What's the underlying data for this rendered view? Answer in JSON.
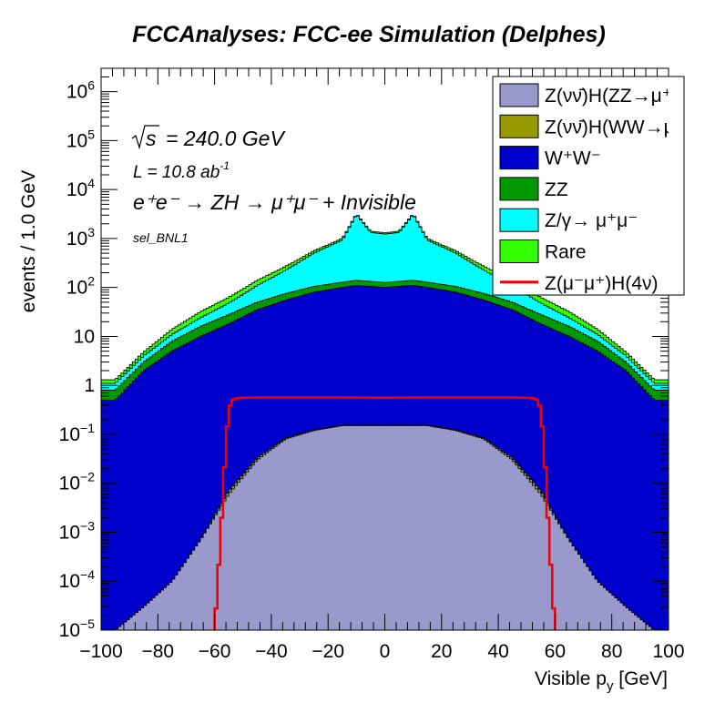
{
  "chart_data": {
    "type": "area",
    "title": "FCCAnalyses: FCC-ee Simulation (Delphes)",
    "xlabel": "Visible p",
    "xlabel_sub": "y",
    "xlabel_unit": "[GeV]",
    "ylabel": "events / 1.0 GeV",
    "xlim": [
      -100,
      100
    ],
    "ylim": [
      1e-05,
      3000000.0
    ],
    "yscale": "log",
    "x_ticks": [
      -100,
      -80,
      -60,
      -40,
      -20,
      0,
      20,
      40,
      60,
      80,
      100
    ],
    "y_ticks": [
      {
        "v": 1e-05,
        "base": "10",
        "exp": "−5"
      },
      {
        "v": 0.0001,
        "base": "10",
        "exp": "−4"
      },
      {
        "v": 0.001,
        "base": "10",
        "exp": "−3"
      },
      {
        "v": 0.01,
        "base": "10",
        "exp": "−2"
      },
      {
        "v": 0.1,
        "base": "10",
        "exp": "−1"
      },
      {
        "v": 1,
        "base": "1",
        "exp": ""
      },
      {
        "v": 10,
        "base": "10",
        "exp": ""
      },
      {
        "v": 100,
        "base": "10",
        "exp": "2"
      },
      {
        "v": 1000,
        "base": "10",
        "exp": "3"
      },
      {
        "v": 10000,
        "base": "10",
        "exp": "4"
      },
      {
        "v": 100000,
        "base": "10",
        "exp": "5"
      },
      {
        "v": 1000000,
        "base": "10",
        "exp": "6"
      }
    ],
    "annotations": {
      "sqrt_s": "= 240.0 GeV",
      "lumi": "L = 10.8 ab",
      "lumi_exp": "-1",
      "process": "e⁺e⁻ → ZH → μ⁺μ⁻ + Invisible",
      "selection": "sel_BNL1"
    },
    "x": [
      -95,
      -85,
      -75,
      -65,
      -55,
      -45,
      -35,
      -25,
      -15,
      -10,
      -5,
      0,
      5,
      10,
      15,
      25,
      35,
      45,
      55,
      65,
      75,
      85,
      95
    ],
    "stack": [
      {
        "name": "Z(νν̄)H(ZZ→μ⁺μ⁻νν̄)",
        "color": "#9999cc",
        "values": [
          1e-05,
          3e-05,
          0.0001,
          0.0007,
          0.006,
          0.03,
          0.08,
          0.12,
          0.15,
          0.15,
          0.15,
          0.15,
          0.15,
          0.15,
          0.15,
          0.12,
          0.08,
          0.03,
          0.006,
          0.0007,
          0.0001,
          3e-05,
          1e-05
        ]
      },
      {
        "name": "Z(νν̄)H(WW→μ⁺νμ⁻ν̄)",
        "color": "#999900",
        "values": [
          0,
          0,
          0,
          2e-05,
          0.001,
          0.003,
          0.004,
          0.004,
          0.005,
          0.004,
          0.005,
          0.004,
          0.005,
          0.004,
          0.005,
          0.004,
          0.004,
          0.003,
          0.001,
          2e-05,
          0,
          0,
          0
        ]
      },
      {
        "name": "W⁺W⁻",
        "color": "#0000cc",
        "values": [
          0.5,
          2,
          5,
          10,
          18,
          35,
          55,
          80,
          100,
          110,
          105,
          100,
          105,
          110,
          100,
          80,
          55,
          35,
          18,
          10,
          5,
          2,
          0.5
        ]
      },
      {
        "name": "ZZ",
        "color": "#009900",
        "values": [
          0.3,
          1,
          3,
          6,
          10,
          15,
          20,
          25,
          28,
          30,
          28,
          27,
          28,
          30,
          28,
          25,
          20,
          15,
          10,
          6,
          3,
          1,
          0.3
        ]
      },
      {
        "name": "Z/γ→ μ⁺μ⁻",
        "color": "#00ffff",
        "values": [
          0.3,
          1,
          3,
          8,
          20,
          60,
          150,
          400,
          800,
          3000,
          1200,
          1100,
          1200,
          3000,
          800,
          400,
          150,
          60,
          20,
          8,
          3,
          1,
          0.3
        ]
      },
      {
        "name": "Rare",
        "color": "#33ff00",
        "values": [
          0.2,
          0.8,
          3,
          8,
          15,
          30,
          45,
          60,
          75,
          80,
          80,
          80,
          80,
          80,
          75,
          60,
          45,
          30,
          15,
          8,
          3,
          0.8,
          0.2
        ]
      }
    ],
    "signal": {
      "name": "Z(μ⁻μ⁺)H(4ν)",
      "color": "#ee0000",
      "x": [
        -60,
        -58,
        -56,
        -55,
        -54,
        -52,
        -50,
        -40,
        -20,
        0,
        20,
        40,
        50,
        52,
        54,
        55,
        56,
        58,
        60
      ],
      "values": [
        1e-05,
        0.0006,
        0.07,
        0.3,
        0.5,
        0.55,
        0.56,
        0.57,
        0.57,
        0.56,
        0.57,
        0.57,
        0.56,
        0.55,
        0.5,
        0.3,
        0.07,
        0.0006,
        1e-05
      ]
    },
    "legend": {
      "position": "top-right",
      "entries": [
        {
          "label": "Z(νν̄)H(ZZ→μ⁺μ⁻νν̄)",
          "color": "#9999cc",
          "kind": "box"
        },
        {
          "label": "Z(νν̄)H(WW→μ⁺νμ⁻ν̄)",
          "color": "#999900",
          "kind": "box"
        },
        {
          "label": "W⁺W⁻",
          "color": "#0000cc",
          "kind": "box"
        },
        {
          "label": "ZZ",
          "color": "#009900",
          "kind": "box"
        },
        {
          "label": "Z/γ→ μ⁺μ⁻",
          "color": "#00ffff",
          "kind": "box"
        },
        {
          "label": "Rare",
          "color": "#33ff00",
          "kind": "box"
        },
        {
          "label": "Z(μ⁻μ⁺)H(4ν)",
          "color": "#ee0000",
          "kind": "line"
        }
      ]
    }
  }
}
